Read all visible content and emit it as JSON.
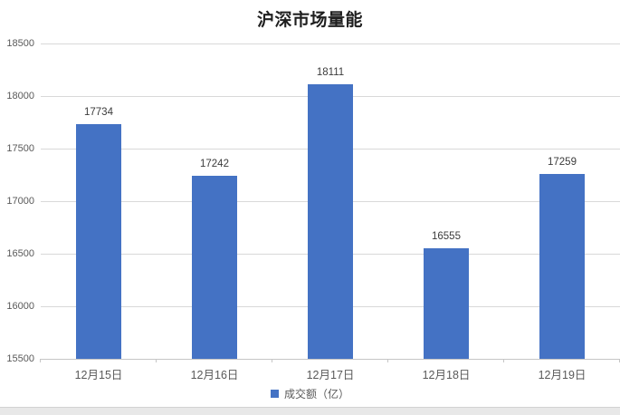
{
  "title": "沪深市场量能",
  "chart_data": {
    "type": "bar",
    "title": "沪深市场量能",
    "categories": [
      "12月15日",
      "12月16日",
      "12月17日",
      "12月18日",
      "12月19日"
    ],
    "series": [
      {
        "name": "成交额（亿）",
        "values": [
          17734,
          17242,
          18111,
          16555,
          17259
        ]
      }
    ],
    "xlabel": "",
    "ylabel": "",
    "ylim": [
      15500,
      18500
    ],
    "ytick_step": 500,
    "yticks": [
      18500,
      18000,
      17500,
      17000,
      16500,
      16000,
      15500
    ],
    "grid": true,
    "legend_position": "bottom",
    "data_labels_shown": true
  },
  "legend": {
    "label": "成交额（亿）"
  },
  "colors": {
    "bar": "#4472C4",
    "gridline": "#D9D9D9",
    "axis_line": "#C6C6C6",
    "tick_label": "#595959",
    "data_label": "#3B3B3B",
    "title": "#1F1F1F",
    "bottom_strip": "#E8E8E8",
    "bottom_strip_edge": "#D2D2D2"
  }
}
